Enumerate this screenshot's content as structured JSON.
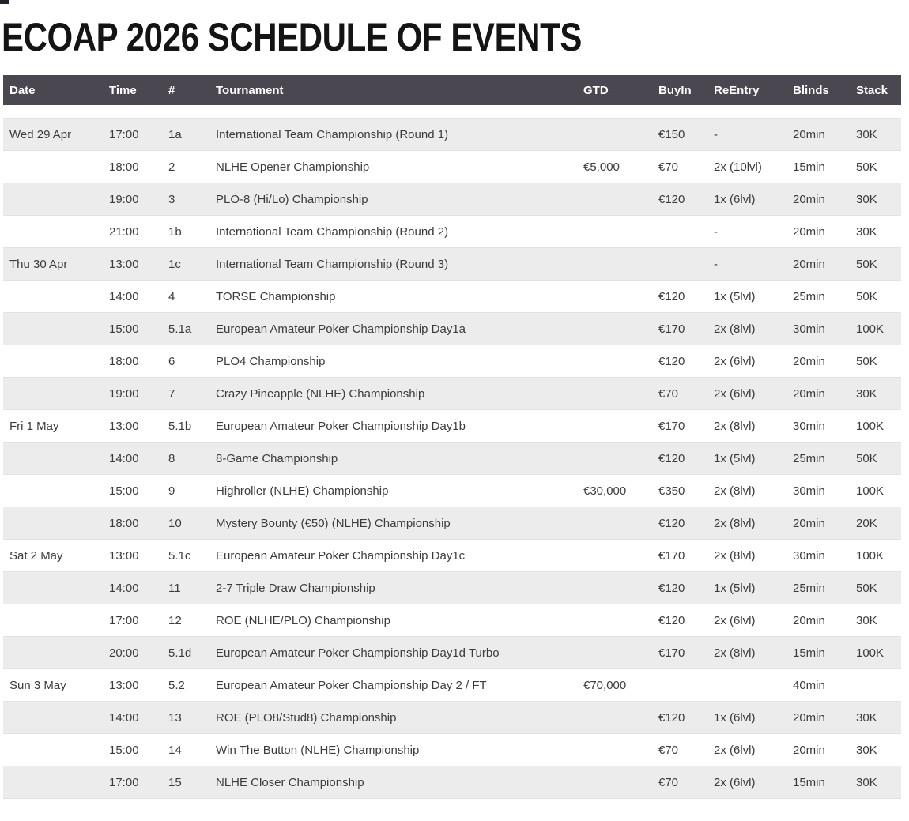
{
  "page": {
    "title": "ECOAP 2026 SCHEDULE OF EVENTS"
  },
  "colors": {
    "header_bg": "#4b4751",
    "header_text": "#ffffff",
    "row_alt_bg": "#ececec",
    "row_bg": "#ffffff",
    "row_border": "#e2e2e2",
    "body_text": "#3c3c3c",
    "title_text": "#141414"
  },
  "schedule_table": {
    "columns": [
      "Date",
      "Time",
      "#",
      "Tournament",
      "GTD",
      "BuyIn",
      "ReEntry",
      "Blinds",
      "Stack"
    ],
    "rows": [
      {
        "date": "Wed 29 Apr",
        "time": "17:00",
        "num": "1a",
        "tournament": "International Team Championship (Round 1)",
        "gtd": "",
        "buyin": "€150",
        "reentry": "-",
        "blinds": "20min",
        "stack": "30K"
      },
      {
        "date": "",
        "time": "18:00",
        "num": "2",
        "tournament": "NLHE Opener Championship",
        "gtd": "€5,000",
        "buyin": "€70",
        "reentry": "2x (10lvl)",
        "blinds": "15min",
        "stack": "50K"
      },
      {
        "date": "",
        "time": "19:00",
        "num": "3",
        "tournament": "PLO-8 (Hi/Lo) Championship",
        "gtd": "",
        "buyin": "€120",
        "reentry": "1x (6lvl)",
        "blinds": "20min",
        "stack": "30K"
      },
      {
        "date": "",
        "time": "21:00",
        "num": "1b",
        "tournament": "International Team Championship (Round 2)",
        "gtd": "",
        "buyin": "",
        "reentry": "-",
        "blinds": "20min",
        "stack": "30K"
      },
      {
        "date": "Thu 30 Apr",
        "time": "13:00",
        "num": "1c",
        "tournament": "International Team Championship (Round 3)",
        "gtd": "",
        "buyin": "",
        "reentry": "-",
        "blinds": "20min",
        "stack": "50K"
      },
      {
        "date": "",
        "time": "14:00",
        "num": "4",
        "tournament": "TORSE Championship",
        "gtd": "",
        "buyin": "€120",
        "reentry": "1x (5lvl)",
        "blinds": "25min",
        "stack": "50K"
      },
      {
        "date": "",
        "time": "15:00",
        "num": "5.1a",
        "tournament": "European Amateur Poker Championship Day1a",
        "gtd": "",
        "buyin": "€170",
        "reentry": "2x (8lvl)",
        "blinds": "30min",
        "stack": "100K"
      },
      {
        "date": "",
        "time": "18:00",
        "num": "6",
        "tournament": "PLO4 Championship",
        "gtd": "",
        "buyin": "€120",
        "reentry": "2x (6lvl)",
        "blinds": "20min",
        "stack": "50K"
      },
      {
        "date": "",
        "time": "19:00",
        "num": "7",
        "tournament": "Crazy Pineapple (NLHE) Championship",
        "gtd": "",
        "buyin": "€70",
        "reentry": "2x (6lvl)",
        "blinds": "20min",
        "stack": "30K"
      },
      {
        "date": "Fri 1 May",
        "time": "13:00",
        "num": "5.1b",
        "tournament": "European Amateur Poker Championship Day1b",
        "gtd": "",
        "buyin": "€170",
        "reentry": "2x (8lvl)",
        "blinds": "30min",
        "stack": "100K"
      },
      {
        "date": "",
        "time": "14:00",
        "num": "8",
        "tournament": "8-Game Championship",
        "gtd": "",
        "buyin": "€120",
        "reentry": "1x (5lvl)",
        "blinds": "25min",
        "stack": "50K"
      },
      {
        "date": "",
        "time": "15:00",
        "num": "9",
        "tournament": "Highroller (NLHE) Championship",
        "gtd": "€30,000",
        "buyin": "€350",
        "reentry": "2x (8lvl)",
        "blinds": "30min",
        "stack": "100K"
      },
      {
        "date": "",
        "time": "18:00",
        "num": "10",
        "tournament": "Mystery Bounty (€50) (NLHE) Championship",
        "gtd": "",
        "buyin": "€120",
        "reentry": "2x (8lvl)",
        "blinds": "20min",
        "stack": "20K"
      },
      {
        "date": "Sat 2 May",
        "time": "13:00",
        "num": "5.1c",
        "tournament": "European Amateur Poker Championship Day1c",
        "gtd": "",
        "buyin": "€170",
        "reentry": "2x (8lvl)",
        "blinds": "30min",
        "stack": "100K"
      },
      {
        "date": "",
        "time": "14:00",
        "num": "11",
        "tournament": "2-7 Triple Draw Championship",
        "gtd": "",
        "buyin": "€120",
        "reentry": "1x (5lvl)",
        "blinds": "25min",
        "stack": "50K"
      },
      {
        "date": "",
        "time": "17:00",
        "num": "12",
        "tournament": "ROE (NLHE/PLO) Championship",
        "gtd": "",
        "buyin": "€120",
        "reentry": "2x (6lvl)",
        "blinds": "20min",
        "stack": "30K"
      },
      {
        "date": "",
        "time": "20:00",
        "num": "5.1d",
        "tournament": "European Amateur Poker Championship Day1d Turbo",
        "gtd": "",
        "buyin": "€170",
        "reentry": "2x (8lvl)",
        "blinds": "15min",
        "stack": "100K"
      },
      {
        "date": "Sun 3 May",
        "time": "13:00",
        "num": "5.2",
        "tournament": "European Amateur Poker Championship Day 2 / FT",
        "gtd": "€70,000",
        "buyin": "",
        "reentry": "",
        "blinds": "40min",
        "stack": ""
      },
      {
        "date": "",
        "time": "14:00",
        "num": "13",
        "tournament": "ROE (PLO8/Stud8) Championship",
        "gtd": "",
        "buyin": "€120",
        "reentry": "1x (6lvl)",
        "blinds": "20min",
        "stack": "30K"
      },
      {
        "date": "",
        "time": "15:00",
        "num": "14",
        "tournament": "Win The Button (NLHE) Championship",
        "gtd": "",
        "buyin": "€70",
        "reentry": "2x (6lvl)",
        "blinds": "20min",
        "stack": "30K"
      },
      {
        "date": "",
        "time": "17:00",
        "num": "15",
        "tournament": "NLHE Closer Championship",
        "gtd": "",
        "buyin": "€70",
        "reentry": "2x (6lvl)",
        "blinds": "15min",
        "stack": "30K"
      }
    ]
  }
}
